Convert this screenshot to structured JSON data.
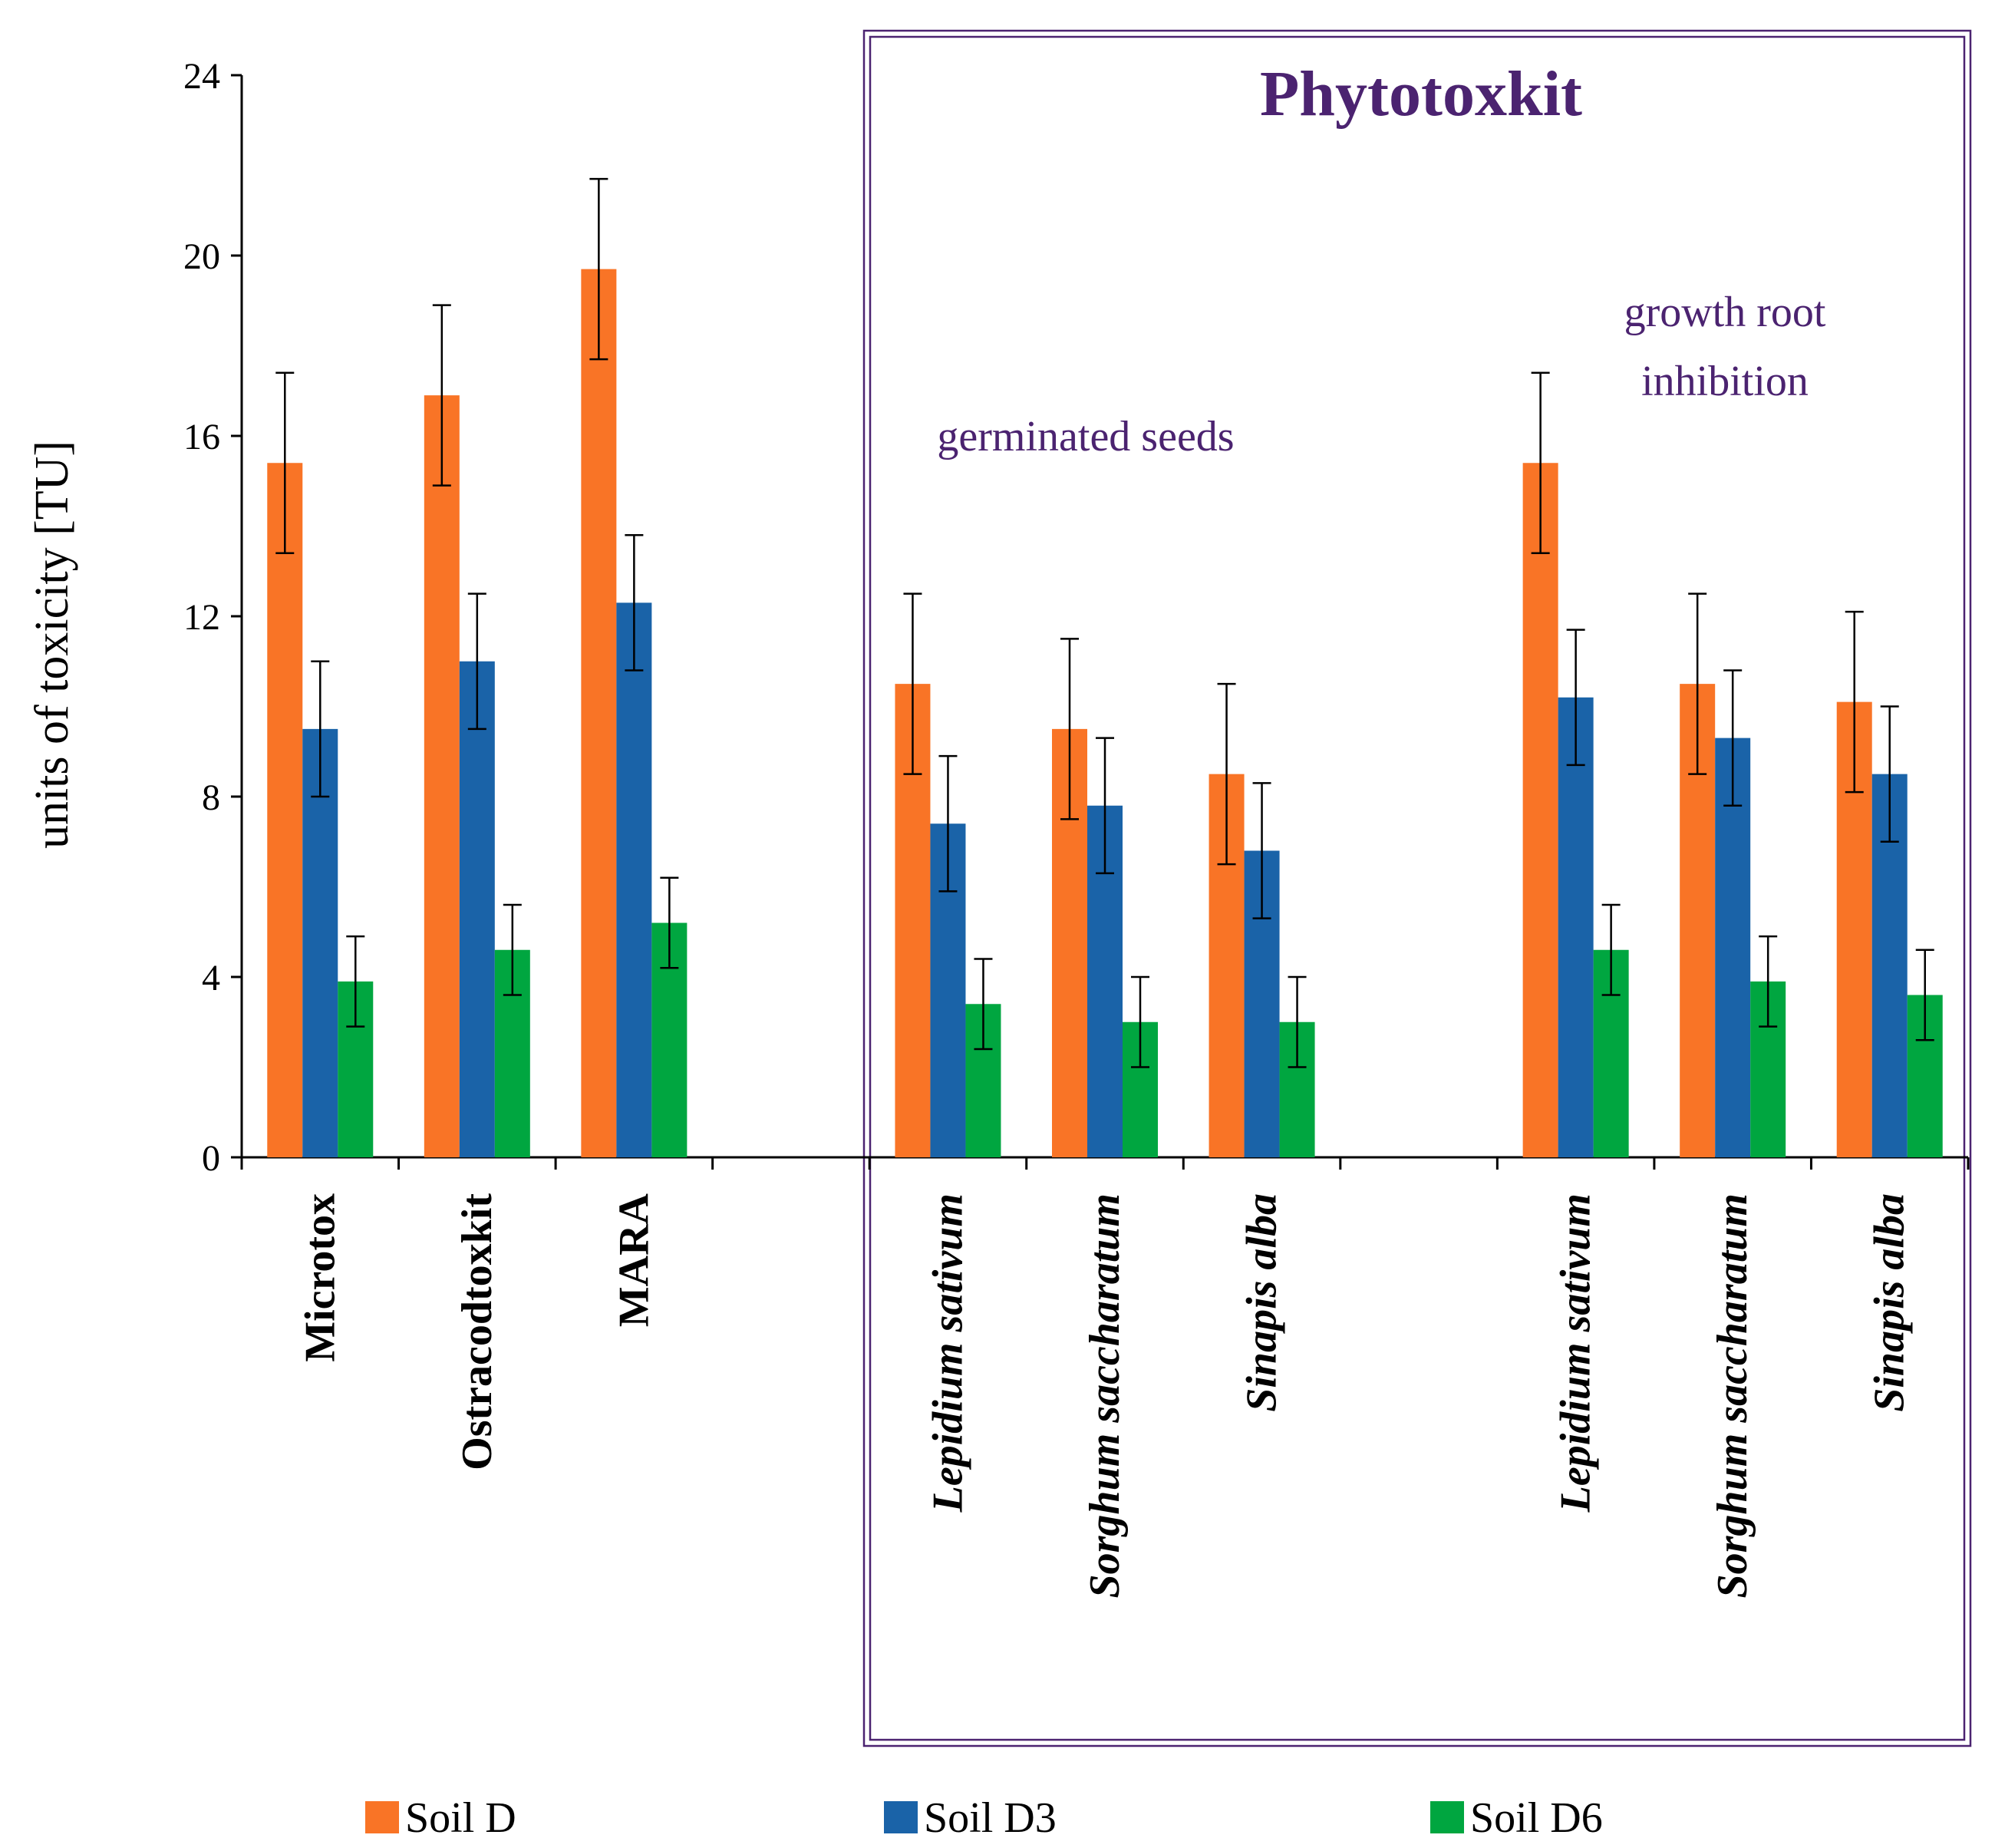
{
  "chart_data": {
    "type": "bar",
    "ylabel": "units of toxicity [TU]",
    "ylim": [
      0,
      24
    ],
    "yticks": [
      0,
      4,
      8,
      12,
      16,
      20,
      24
    ],
    "grid": false,
    "legend_position": "bottom",
    "categories": [
      {
        "label": "Microtox",
        "style": "bold"
      },
      {
        "label": "Ostracodtoxkit",
        "style": "bold"
      },
      {
        "label": "MARA",
        "style": "bold"
      },
      {
        "label": "",
        "style": "normal"
      },
      {
        "label": "Lepidium sativum",
        "style": "bold-italic"
      },
      {
        "label": "Sorghum saccharatum",
        "style": "bold-italic"
      },
      {
        "label": "Sinapis alba",
        "style": "bold-italic"
      },
      {
        "label": "",
        "style": "normal"
      },
      {
        "label": "Lepidium sativum",
        "style": "bold-italic"
      },
      {
        "label": "Sorghum saccharatum",
        "style": "bold-italic"
      },
      {
        "label": "Sinapis alba",
        "style": "bold-italic"
      }
    ],
    "series": [
      {
        "name": "Soil D",
        "color": "#f97426",
        "values": [
          15.4,
          16.9,
          19.7,
          null,
          10.5,
          9.5,
          8.5,
          null,
          15.4,
          10.5,
          10.1
        ],
        "errors": [
          2.0,
          2.0,
          2.0,
          null,
          2.0,
          2.0,
          2.0,
          null,
          2.0,
          2.0,
          2.0
        ]
      },
      {
        "name": "Soil D3",
        "color": "#1a63a8",
        "values": [
          9.5,
          11.0,
          12.3,
          null,
          7.4,
          7.8,
          6.8,
          null,
          10.2,
          9.3,
          8.5
        ],
        "errors": [
          1.5,
          1.5,
          1.5,
          null,
          1.5,
          1.5,
          1.5,
          null,
          1.5,
          1.5,
          1.5
        ]
      },
      {
        "name": "Soil D6",
        "color": "#00a640",
        "values": [
          3.9,
          4.6,
          5.2,
          null,
          3.4,
          3.0,
          3.0,
          null,
          4.6,
          3.9,
          3.6
        ],
        "errors": [
          1.0,
          1.0,
          1.0,
          null,
          1.0,
          1.0,
          1.0,
          null,
          1.0,
          1.0,
          1.0
        ]
      }
    ],
    "annotations": {
      "box_title": "Phytotoxkit",
      "germinated": "germinated seeds",
      "growth_line1": "growth root",
      "growth_line2": "inhibition"
    },
    "annotation_color": "#4b2370",
    "box_color": "#4b2370"
  }
}
